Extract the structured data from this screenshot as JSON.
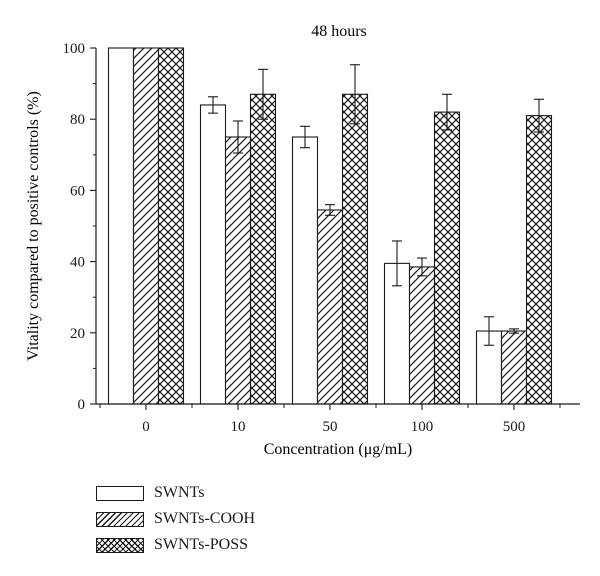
{
  "chart_data": {
    "type": "bar",
    "title": "48 hours",
    "xlabel": "Concentration (μg/mL)",
    "ylabel": "Vitality compared to positive controls (%)",
    "ylim": [
      0,
      100
    ],
    "yticks": [
      0,
      20,
      40,
      60,
      80,
      100
    ],
    "categories": [
      "0",
      "10",
      "50",
      "100",
      "500"
    ],
    "series": [
      {
        "name": "SWNTs",
        "pattern": "blank",
        "values": [
          100,
          84,
          75,
          39.5,
          20.5
        ],
        "errors": [
          0,
          2.3,
          3,
          6.3,
          4
        ]
      },
      {
        "name": "SWNTs-COOH",
        "pattern": "hatch",
        "values": [
          100,
          75,
          54.5,
          38.5,
          20.5
        ],
        "errors": [
          0,
          4.5,
          1.5,
          2.5,
          0.6
        ]
      },
      {
        "name": "SWNTs-POSS",
        "pattern": "crosshatch",
        "values": [
          100,
          87,
          87,
          82,
          81
        ],
        "errors": [
          0,
          7,
          8.3,
          5,
          4.6
        ]
      }
    ],
    "grid": false,
    "legend_position": "bottom-left",
    "colors": {
      "ink": "#1a1a1a",
      "background": "#ffffff"
    }
  }
}
